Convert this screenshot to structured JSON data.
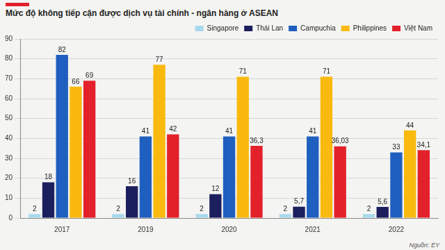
{
  "chart_data": {
    "type": "bar",
    "title": "Mức độ không tiếp cận được dịch vụ tài chính - ngân hàng ở ASEAN",
    "source": "Nguồn: EY",
    "categories": [
      "2017",
      "2019",
      "2020",
      "2021",
      "2022"
    ],
    "series": [
      {
        "name": "Singapore",
        "color": "#a8d8ee",
        "values": [
          2,
          2,
          2,
          2,
          2
        ]
      },
      {
        "name": "Thái Lan",
        "color": "#1c1f5e",
        "values": [
          18,
          16,
          12,
          5.7,
          5.6
        ],
        "value_labels": [
          "18",
          "16",
          "12",
          "5,7",
          "5,6"
        ]
      },
      {
        "name": "Campuchia",
        "color": "#1f5fbf",
        "values": [
          82,
          41,
          41,
          41,
          33
        ]
      },
      {
        "name": "Philippines",
        "color": "#f9b90f",
        "values": [
          66,
          77,
          71,
          71,
          44
        ]
      },
      {
        "name": "Việt Nam",
        "color": "#e3212b",
        "values": [
          69,
          42,
          36.3,
          36.03,
          34.1
        ],
        "value_labels": [
          "69",
          "42",
          "36,3",
          "36,03",
          "34,1"
        ]
      }
    ],
    "ylim": [
      0,
      90
    ],
    "yticks": [
      0,
      10,
      20,
      30,
      40,
      50,
      60,
      70,
      80,
      90
    ],
    "grid": true,
    "legend": "top-right",
    "data_labels": true
  }
}
